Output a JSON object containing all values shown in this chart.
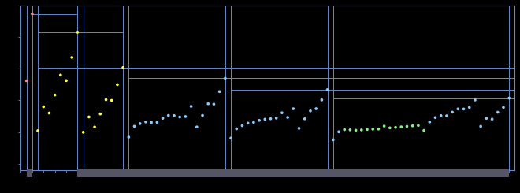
{
  "background_color": "#000000",
  "plot_bg_color": "#000000",
  "line_color": "#6688cc",
  "xlim": [
    0,
    87
  ],
  "ylim": [
    0,
    2500
  ],
  "figsize": [
    6.6,
    2.45
  ],
  "dpi": 100,
  "gray_bars": [
    [
      1,
      2
    ],
    [
      10,
      18
    ],
    [
      18,
      36
    ],
    [
      36,
      54
    ],
    [
      54,
      86
    ]
  ],
  "horiz_lines": [
    {
      "y": 2372,
      "x1": 2,
      "x2": 10
    },
    {
      "y": 2081,
      "x1": 3,
      "x2": 18
    },
    {
      "y": 1521,
      "x1": 3,
      "x2": 87
    },
    {
      "y": 1351,
      "x1": 19,
      "x2": 87
    },
    {
      "y": 1170,
      "x1": 37,
      "x2": 87
    },
    {
      "y": 1037,
      "x1": 55,
      "x2": 87
    }
  ],
  "vert_lines": [
    1,
    2,
    3,
    10,
    11,
    18,
    19,
    36,
    37,
    54,
    55,
    86
  ],
  "IE": [
    [
      1,
      1312
    ],
    [
      2,
      2372
    ],
    [
      3,
      520
    ],
    [
      4,
      900
    ],
    [
      5,
      800
    ],
    [
      6,
      1086
    ],
    [
      7,
      1402
    ],
    [
      8,
      1314
    ],
    [
      9,
      1681
    ],
    [
      10,
      2081
    ],
    [
      11,
      496
    ],
    [
      12,
      738
    ],
    [
      13,
      578
    ],
    [
      14,
      786
    ],
    [
      15,
      1012
    ],
    [
      16,
      1000
    ],
    [
      17,
      1251
    ],
    [
      18,
      1521
    ],
    [
      19,
      419
    ],
    [
      20,
      590
    ],
    [
      21,
      633
    ],
    [
      22,
      659
    ],
    [
      23,
      651
    ],
    [
      24,
      653
    ],
    [
      25,
      717
    ],
    [
      26,
      762
    ],
    [
      27,
      760
    ],
    [
      28,
      737
    ],
    [
      29,
      745
    ],
    [
      30,
      906
    ],
    [
      31,
      579
    ],
    [
      32,
      762
    ],
    [
      33,
      947
    ],
    [
      34,
      941
    ],
    [
      35,
      1140
    ],
    [
      36,
      1351
    ],
    [
      37,
      403
    ],
    [
      38,
      550
    ],
    [
      39,
      600
    ],
    [
      40,
      640
    ],
    [
      41,
      652
    ],
    [
      42,
      684
    ],
    [
      43,
      702
    ],
    [
      44,
      710
    ],
    [
      45,
      720
    ],
    [
      46,
      804
    ],
    [
      47,
      731
    ],
    [
      48,
      868
    ],
    [
      49,
      558
    ],
    [
      50,
      709
    ],
    [
      51,
      834
    ],
    [
      52,
      869
    ],
    [
      53,
      1008
    ],
    [
      54,
      1170
    ],
    [
      55,
      376
    ],
    [
      56,
      503
    ],
    [
      57,
      538
    ],
    [
      58,
      534
    ],
    [
      59,
      527
    ],
    [
      60,
      533
    ],
    [
      61,
      540
    ],
    [
      62,
      545
    ],
    [
      63,
      547
    ],
    [
      64,
      593
    ],
    [
      65,
      565
    ],
    [
      66,
      573
    ],
    [
      67,
      581
    ],
    [
      68,
      589
    ],
    [
      69,
      597
    ],
    [
      70,
      603
    ],
    [
      71,
      524
    ],
    [
      72,
      659
    ],
    [
      73,
      728
    ],
    [
      74,
      759
    ],
    [
      75,
      756
    ],
    [
      76,
      814
    ],
    [
      77,
      865
    ],
    [
      78,
      864
    ],
    [
      79,
      890
    ],
    [
      80,
      1007
    ],
    [
      81,
      589
    ],
    [
      82,
      716
    ],
    [
      83,
      703
    ],
    [
      84,
      812
    ],
    [
      85,
      890
    ],
    [
      86,
      1037
    ]
  ],
  "dot_size": 7,
  "colors": {
    "period1": "#ff8888",
    "period2": "#ffff44",
    "period3": "#ffff44",
    "period4": "#88ccff",
    "period5": "#88ccff",
    "lanthanide": "#88ee88",
    "period6": "#88ccff"
  }
}
